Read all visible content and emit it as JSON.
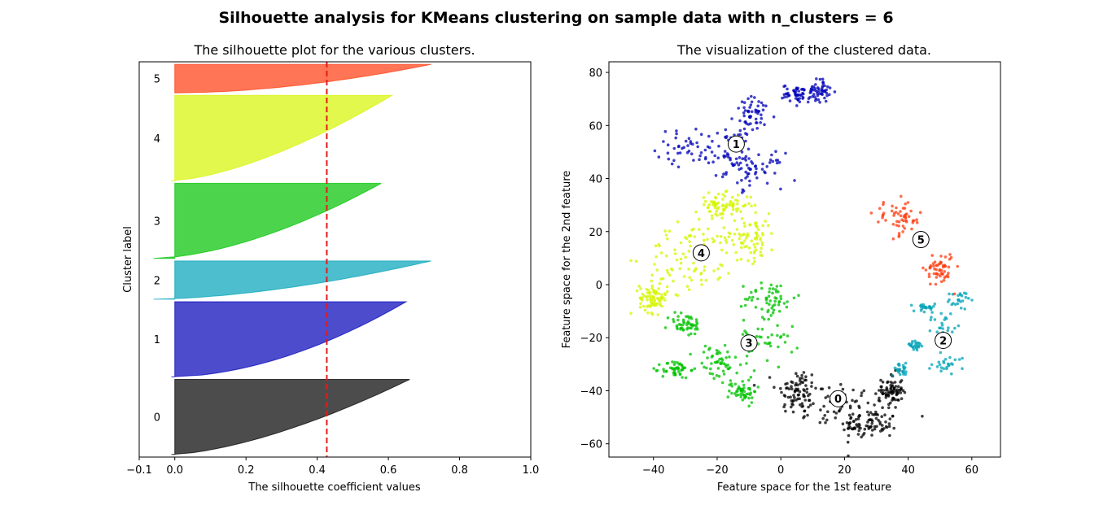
{
  "figure": {
    "suptitle": "Silhouette analysis for KMeans clustering on sample data with n_clusters = 6"
  },
  "chart_data": [
    {
      "type": "area",
      "title": "The silhouette plot for the various clusters.",
      "xlabel": "The silhouette coefficient values",
      "ylabel": "Cluster label",
      "xlim": [
        -0.1,
        1.0
      ],
      "xticks": [
        -0.1,
        0.0,
        0.2,
        0.4,
        0.6,
        0.8,
        1.0
      ],
      "xtick_labels": [
        "−0.1",
        "0.0",
        "0.2",
        "0.4",
        "0.6",
        "0.8",
        "1.0"
      ],
      "yticks": [],
      "average_silhouette": 0.427,
      "average_line_color": "#e41a1c",
      "clusters": [
        {
          "label": "0",
          "size": 295,
          "min": -0.01,
          "max": 0.66,
          "color": "#000000",
          "shape": 0.65
        },
        {
          "label": "1",
          "size": 295,
          "min": -0.01,
          "max": 0.65,
          "color": "#0000b8",
          "shape": 0.55
        },
        {
          "label": "2",
          "size": 150,
          "min": -0.06,
          "max": 0.72,
          "color": "#00a3b8",
          "shape": 0.6
        },
        {
          "label": "3",
          "size": 295,
          "min": -0.06,
          "max": 0.58,
          "color": "#00c300",
          "shape": 0.6
        },
        {
          "label": "4",
          "size": 335,
          "min": -0.01,
          "max": 0.61,
          "color": "#d6f500",
          "shape": 0.65
        },
        {
          "label": "5",
          "size": 112,
          "min": 0.0,
          "max": 0.72,
          "color": "#ff3a0d",
          "shape": 0.55
        }
      ]
    },
    {
      "type": "scatter",
      "title": "The visualization of the clustered data.",
      "xlabel": "Feature space for the 1st feature",
      "ylabel": "Feature space for the 2nd feature",
      "xlim": [
        -54,
        69
      ],
      "ylim": [
        -65,
        84
      ],
      "xticks": [
        -40,
        -20,
        0,
        20,
        40,
        60
      ],
      "xtick_labels": [
        "−40",
        "−20",
        "0",
        "20",
        "40",
        "60"
      ],
      "yticks": [
        -60,
        -40,
        -20,
        0,
        20,
        40,
        60,
        80
      ],
      "ytick_labels": [
        "−60",
        "−40",
        "−20",
        "0",
        "20",
        "40",
        "60",
        "80"
      ],
      "centers": [
        {
          "label": "0",
          "x": 18,
          "y": -43
        },
        {
          "label": "1",
          "x": -14,
          "y": 53
        },
        {
          "label": "2",
          "x": 51,
          "y": -21
        },
        {
          "label": "3",
          "x": -10,
          "y": -22
        },
        {
          "label": "4",
          "x": -25,
          "y": 12
        },
        {
          "label": "5",
          "x": 44,
          "y": 17
        }
      ],
      "series": [
        {
          "label": "0",
          "color": "#000000",
          "n": 300,
          "blobs": [
            [
              20,
              -46,
              16,
              9
            ],
            [
              5,
              -40,
              6,
              8
            ],
            [
              28,
              -53,
              8,
              5
            ],
            [
              35,
              -40,
              3,
              6
            ]
          ]
        },
        {
          "label": "1",
          "color": "#0000b8",
          "n": 300,
          "blobs": [
            [
              -28,
              52,
              10,
              6
            ],
            [
              -15,
              50,
              6,
              9
            ],
            [
              -8,
              43,
              8,
              6
            ],
            [
              -8,
              64,
              6,
              6
            ],
            [
              5,
              72,
              4,
              3
            ],
            [
              12,
              73,
              3,
              4
            ]
          ]
        },
        {
          "label": "2",
          "color": "#00a3b8",
          "n": 140,
          "blobs": [
            [
              53,
              -30,
              5,
              3
            ],
            [
              51,
              -15,
              3,
              5
            ],
            [
              56,
              -6,
              3,
              3
            ],
            [
              45,
              -9,
              3,
              2
            ],
            [
              42,
              -23,
              3,
              2
            ],
            [
              38,
              -32,
              3,
              2
            ]
          ]
        },
        {
          "label": "3",
          "color": "#00c300",
          "n": 300,
          "blobs": [
            [
              -6,
              -20,
              9,
              11
            ],
            [
              -20,
              -30,
              6,
              7
            ],
            [
              -12,
              -40,
              4,
              4
            ],
            [
              -3,
              -5,
              7,
              6
            ],
            [
              -33,
              -32,
              4,
              3
            ],
            [
              -30,
              -15,
              5,
              4
            ]
          ]
        },
        {
          "label": "4",
          "color": "#d6f500",
          "n": 330,
          "blobs": [
            [
              -28,
              10,
              13,
              12
            ],
            [
              -10,
              18,
              8,
              8
            ],
            [
              -40,
              -5,
              4,
              5
            ],
            [
              -18,
              30,
              8,
              4
            ]
          ]
        },
        {
          "label": "5",
          "color": "#ff3a0d",
          "n": 110,
          "blobs": [
            [
              37,
              25,
              7,
              6
            ],
            [
              50,
              6,
              4,
              6
            ]
          ]
        }
      ]
    }
  ]
}
